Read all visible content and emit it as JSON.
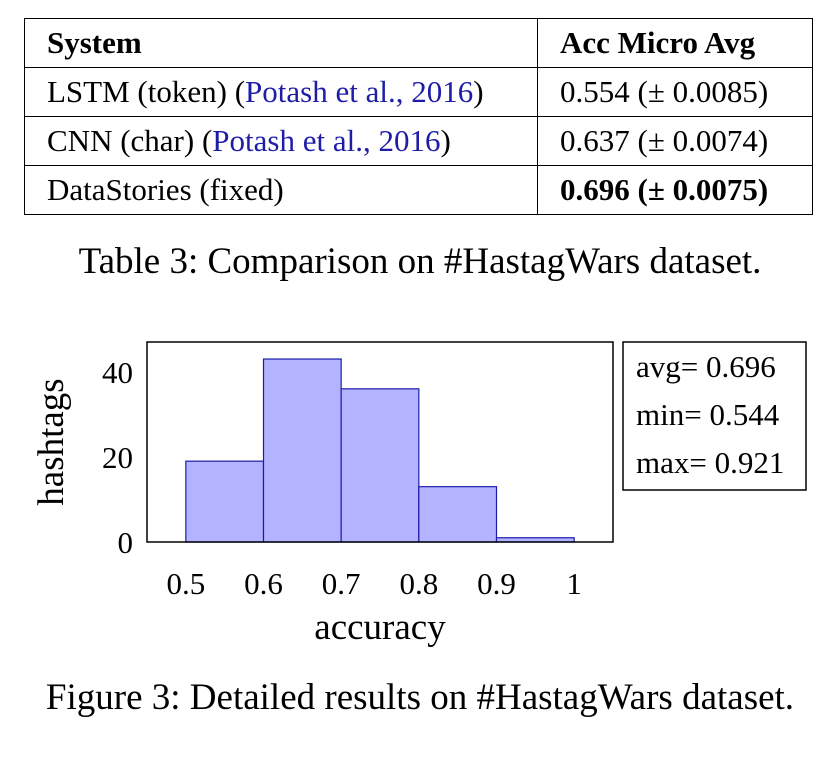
{
  "table": {
    "headers": [
      "System",
      "Acc Micro Avg"
    ],
    "rows": [
      {
        "system": "LSTM (token)",
        "cite": "Potash et al., 2016",
        "value": "0.554 (± 0.0085)",
        "bold": false
      },
      {
        "system": "CNN (char)",
        "cite": "Potash et al., 2016",
        "value": "0.637 (± 0.0074)",
        "bold": false
      },
      {
        "system": "DataStories (fixed)",
        "cite": "",
        "value_main": "0.696",
        "value_paren_open": " (± ",
        "value_err": "0.0075",
        "value_paren_close": ")",
        "bold": true
      }
    ],
    "caption": "Table 3: Comparison on #HastagWars dataset."
  },
  "figure": {
    "caption": "Figure 3: Detailed results on #HastagWars dataset.",
    "stats": [
      "avg= 0.696",
      "min= 0.544",
      "max= 0.921"
    ]
  },
  "chart_data": {
    "type": "bar",
    "bins": [
      [
        0.5,
        0.6
      ],
      [
        0.6,
        0.7
      ],
      [
        0.7,
        0.8
      ],
      [
        0.8,
        0.9
      ],
      [
        0.9,
        1.0
      ]
    ],
    "values": [
      19,
      43,
      36,
      13,
      1
    ],
    "xlabel": "accuracy",
    "ylabel": "hashtags",
    "xticks": [
      "0.5",
      "0.6",
      "0.7",
      "0.8",
      "0.9",
      "1"
    ],
    "yticks": [
      "0",
      "20",
      "40"
    ],
    "xlim": [
      0.45,
      1.05
    ],
    "ylim": [
      0,
      47
    ],
    "fill_color": "#b3b3ff",
    "edge_color": "#1d1da8"
  }
}
